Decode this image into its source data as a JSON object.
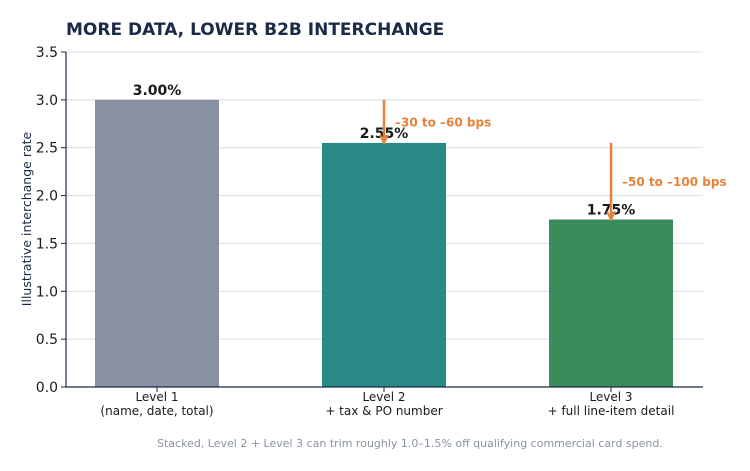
{
  "colors": {
    "title": "#1b2a47",
    "axis": "#1b2a47",
    "grid": "#d9dde4",
    "annotation": "#e8803a",
    "footnote": "#8a93a3"
  },
  "chart_data": {
    "type": "bar",
    "title": "MORE DATA, LOWER B2B INTERCHANGE",
    "xlabel": "",
    "ylabel": "Illustrative interchange rate",
    "ylim": [
      0,
      3.5
    ],
    "yticks": [
      "0.0",
      "0.5",
      "1.0",
      "1.5",
      "2.0",
      "2.5",
      "3.0",
      "3.5"
    ],
    "grid": true,
    "categories": [
      [
        "Level 1",
        "(name, date, total)"
      ],
      [
        "Level 2",
        "+ tax & PO number"
      ],
      [
        "Level 3",
        "+ full line-item detail"
      ]
    ],
    "values": [
      3.0,
      2.55,
      1.75
    ],
    "value_labels": [
      "3.00%",
      "2.55%",
      "1.75%"
    ],
    "bar_colors": [
      "#8891a3",
      "#2a8a88",
      "#3a8c5c"
    ],
    "annotations": [
      {
        "bar": 1,
        "from": 3.0,
        "to": 2.55,
        "text": "–30 to –60 bps"
      },
      {
        "bar": 2,
        "from": 2.55,
        "to": 1.75,
        "text": "–50 to –100 bps"
      }
    ],
    "footnote": "Stacked, Level 2 + Level 3 can trim roughly 1.0–1.5% off qualifying commercial card spend."
  }
}
